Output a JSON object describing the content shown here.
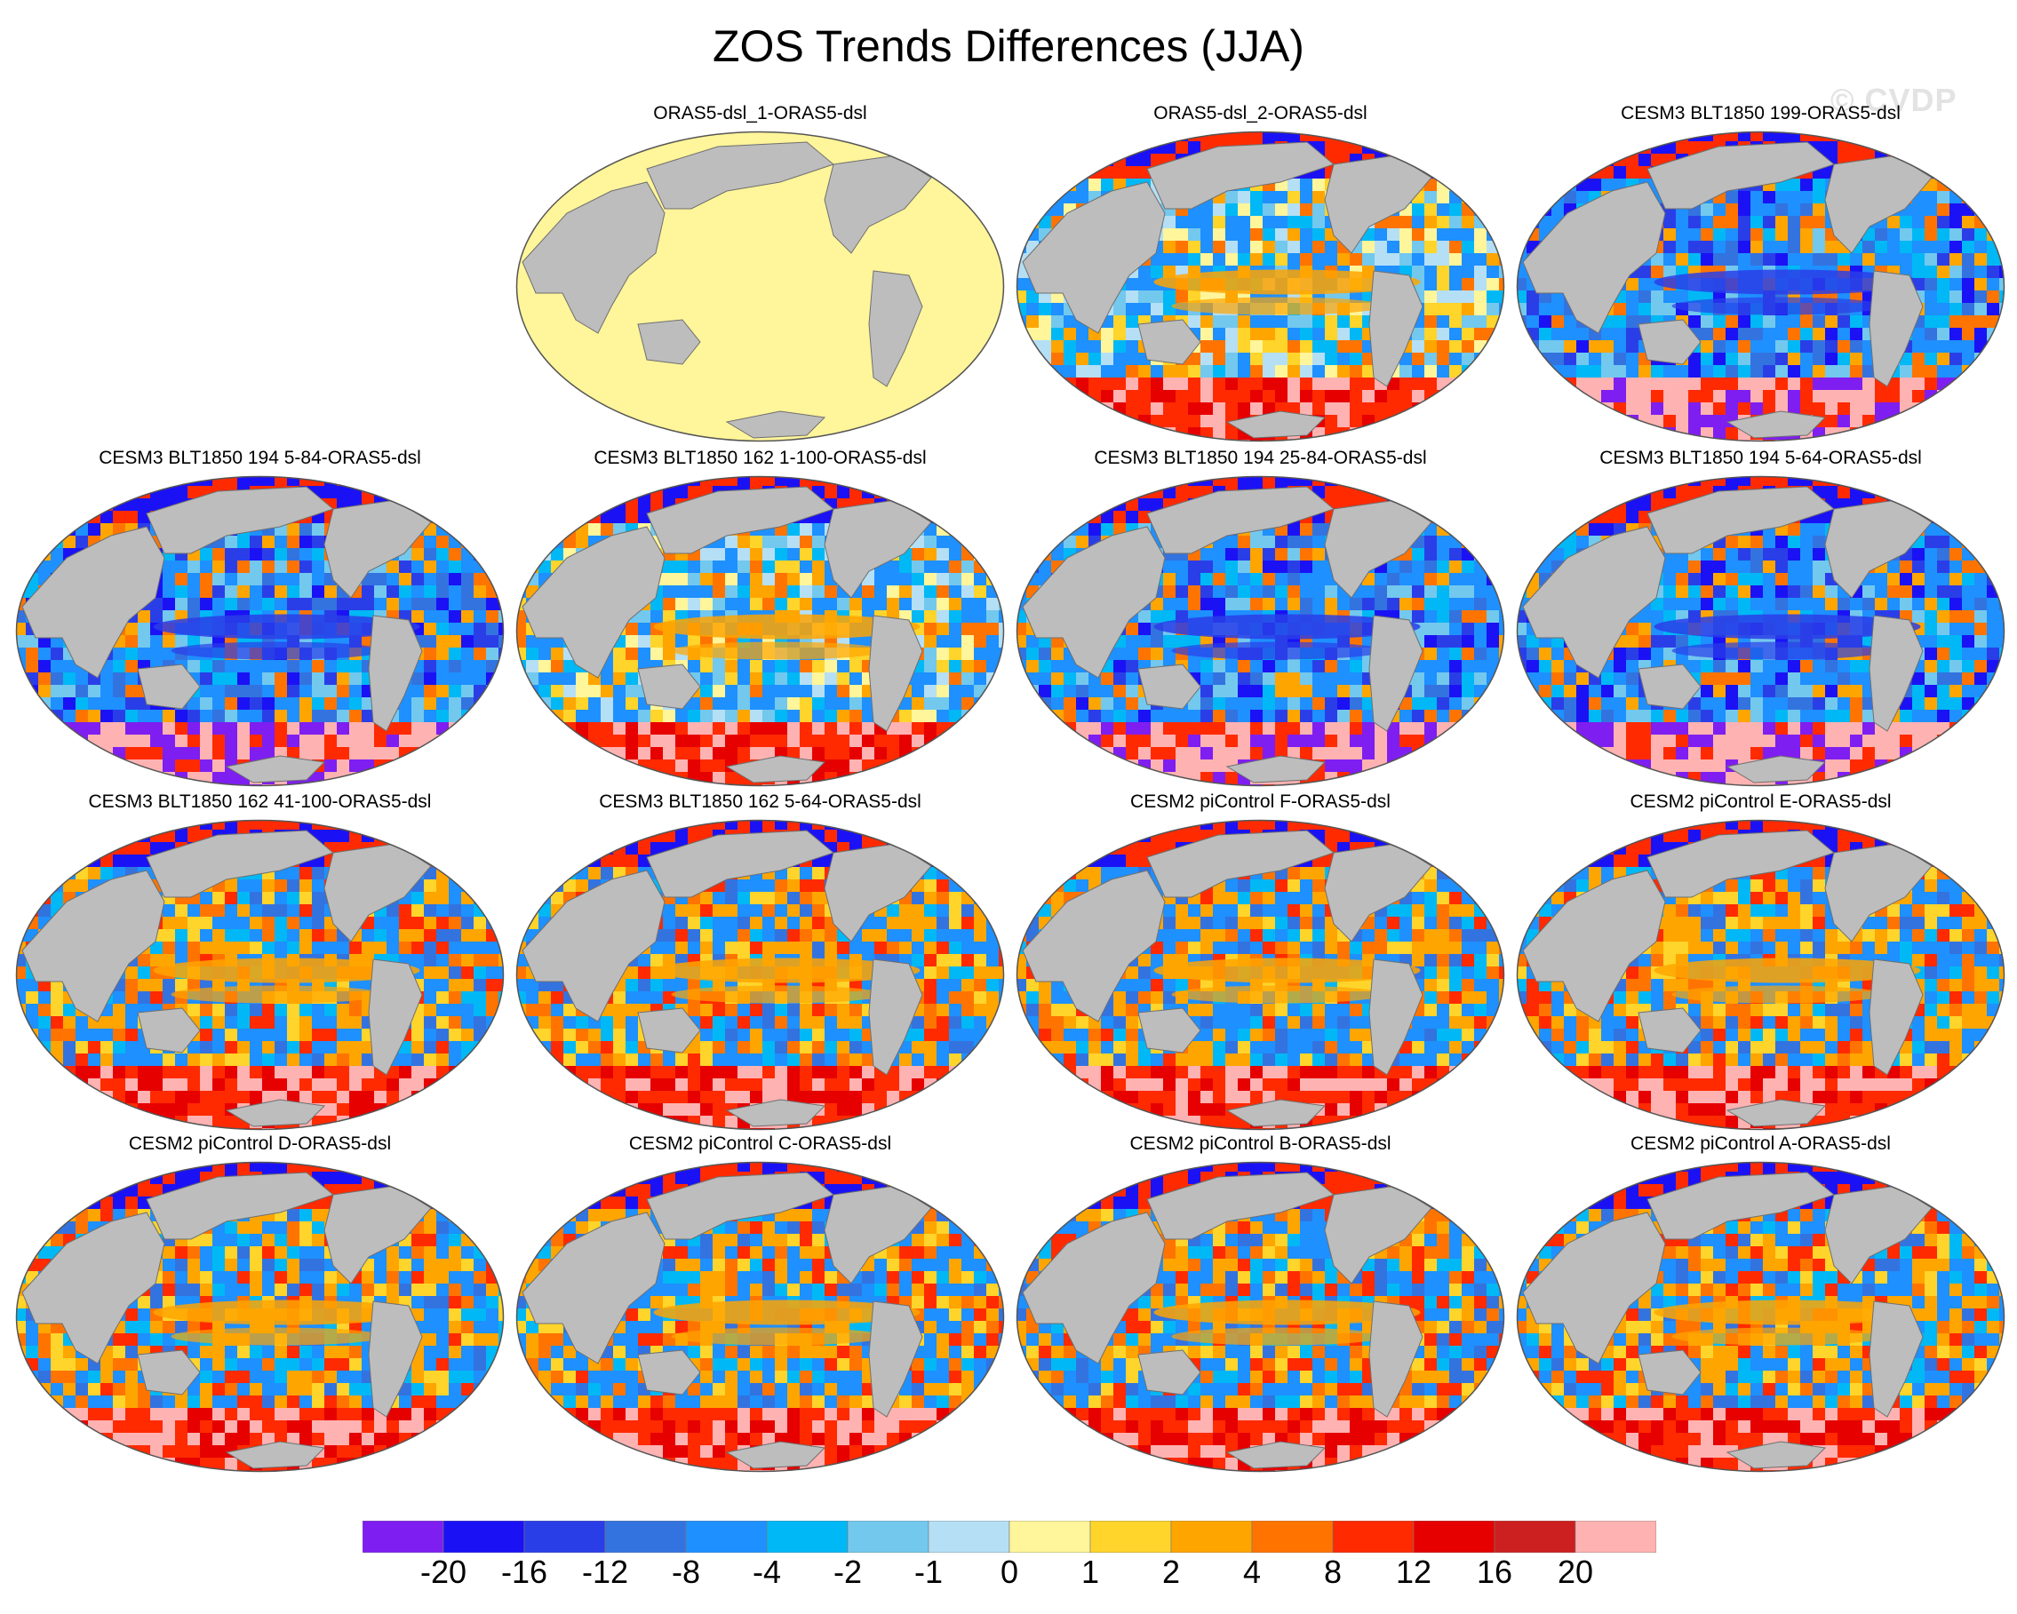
{
  "title": "ZOS Trends Differences (JJA)",
  "watermark": "© CVDP",
  "colorbar": {
    "colors": [
      "#7f1ef0",
      "#1a12f5",
      "#2a3ee8",
      "#3373e0",
      "#1e90ff",
      "#00b8f5",
      "#73c8ee",
      "#b5dff5",
      "#fff59a",
      "#ffd42b",
      "#ffa500",
      "#ff7400",
      "#ff2a00",
      "#e60000",
      "#cc1f1f",
      "#ffb2b2"
    ],
    "labels": [
      "-20",
      "-16",
      "-12",
      "-8",
      "-4",
      "-2",
      "-1",
      "0",
      "1",
      "2",
      "4",
      "8",
      "12",
      "16",
      "20"
    ]
  },
  "panels": [
    {
      "title": "ORAS5-dsl_1-ORAS5-dsl",
      "pattern": "zero"
    },
    {
      "title": "ORAS5-dsl_2-ORAS5-dsl",
      "pattern": "mixed"
    },
    {
      "title": "CESM3 BLT1850 199-ORAS5-dsl",
      "pattern": "blue"
    },
    {
      "title": "CESM3 BLT1850 194 5-84-ORAS5-dsl",
      "pattern": "blue"
    },
    {
      "title": "CESM3 BLT1850 162 1-100-ORAS5-dsl",
      "pattern": "mixed"
    },
    {
      "title": "CESM3 BLT1850 194 25-84-ORAS5-dsl",
      "pattern": "blue"
    },
    {
      "title": "CESM3 BLT1850 194 5-64-ORAS5-dsl",
      "pattern": "blue"
    },
    {
      "title": "CESM3 BLT1850 162 41-100-ORAS5-dsl",
      "pattern": "red"
    },
    {
      "title": "CESM3 BLT1850 162 5-64-ORAS5-dsl",
      "pattern": "red"
    },
    {
      "title": "CESM2 piControl F-ORAS5-dsl",
      "pattern": "red"
    },
    {
      "title": "CESM2 piControl E-ORAS5-dsl",
      "pattern": "red"
    },
    {
      "title": "CESM2 piControl D-ORAS5-dsl",
      "pattern": "red"
    },
    {
      "title": "CESM2 piControl C-ORAS5-dsl",
      "pattern": "red"
    },
    {
      "title": "CESM2 piControl B-ORAS5-dsl",
      "pattern": "red"
    },
    {
      "title": "CESM2 piControl A-ORAS5-dsl",
      "pattern": "red"
    }
  ]
}
